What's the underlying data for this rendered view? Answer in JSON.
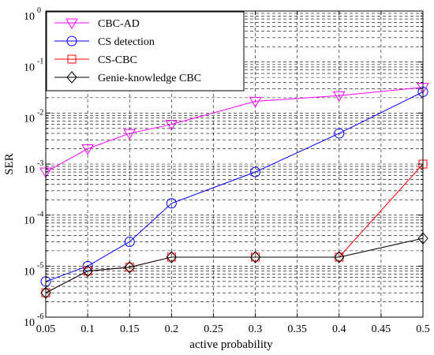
{
  "chart_data": {
    "type": "line",
    "xlabel": "active probability",
    "ylabel": "SER",
    "xlim": [
      0.05,
      0.5
    ],
    "ylim": [
      1e-06,
      1
    ],
    "y_scale": "log",
    "grid": true,
    "legend_position": "top-left",
    "x_ticks": [
      0.05,
      0.1,
      0.15,
      0.2,
      0.25,
      0.3,
      0.35,
      0.4,
      0.45,
      0.5
    ],
    "x_tick_labels": [
      "0.05",
      "0.1",
      "0.15",
      "0.2",
      "0.25",
      "0.3",
      "0.35",
      "0.4",
      "0.45",
      "0.5"
    ],
    "y_ticks": [
      {
        "value": 1e-06,
        "base": "10",
        "exp": "-6"
      },
      {
        "value": 1e-05,
        "base": "10",
        "exp": "-5"
      },
      {
        "value": 0.0001,
        "base": "10",
        "exp": "-4"
      },
      {
        "value": 0.001,
        "base": "10",
        "exp": "-3"
      },
      {
        "value": 0.01,
        "base": "10",
        "exp": "-2"
      },
      {
        "value": 0.1,
        "base": "10",
        "exp": "-1"
      },
      {
        "value": 1,
        "base": "10",
        "exp": "0"
      }
    ],
    "series": [
      {
        "name": "CBC-AD",
        "color": "#ff00ff",
        "marker": "triangle-down",
        "x": [
          0.05,
          0.1,
          0.15,
          0.2,
          0.3,
          0.4,
          0.5
        ],
        "y": [
          0.0007,
          0.002,
          0.004,
          0.006,
          0.017,
          0.022,
          0.032
        ]
      },
      {
        "name": "CS detection",
        "color": "#0000ff",
        "marker": "circle",
        "x": [
          0.05,
          0.1,
          0.15,
          0.2,
          0.3,
          0.4,
          0.5
        ],
        "y": [
          5e-06,
          1e-05,
          3e-05,
          0.00017,
          0.0007,
          0.004,
          0.026
        ]
      },
      {
        "name": "CS-CBC",
        "color": "#ff0000",
        "marker": "square",
        "x": [
          0.05,
          0.1,
          0.15,
          0.2,
          0.3,
          0.4,
          0.5
        ],
        "y": [
          3e-06,
          8e-06,
          9.5e-06,
          1.5e-05,
          1.5e-05,
          1.5e-05,
          0.001
        ]
      },
      {
        "name": "Genie-knowledge CBC",
        "color": "#000000",
        "marker": "diamond",
        "x": [
          0.05,
          0.1,
          0.15,
          0.2,
          0.3,
          0.4,
          0.5
        ],
        "y": [
          3e-06,
          8e-06,
          9.5e-06,
          1.5e-05,
          1.5e-05,
          1.5e-05,
          3.5e-05
        ]
      }
    ]
  }
}
